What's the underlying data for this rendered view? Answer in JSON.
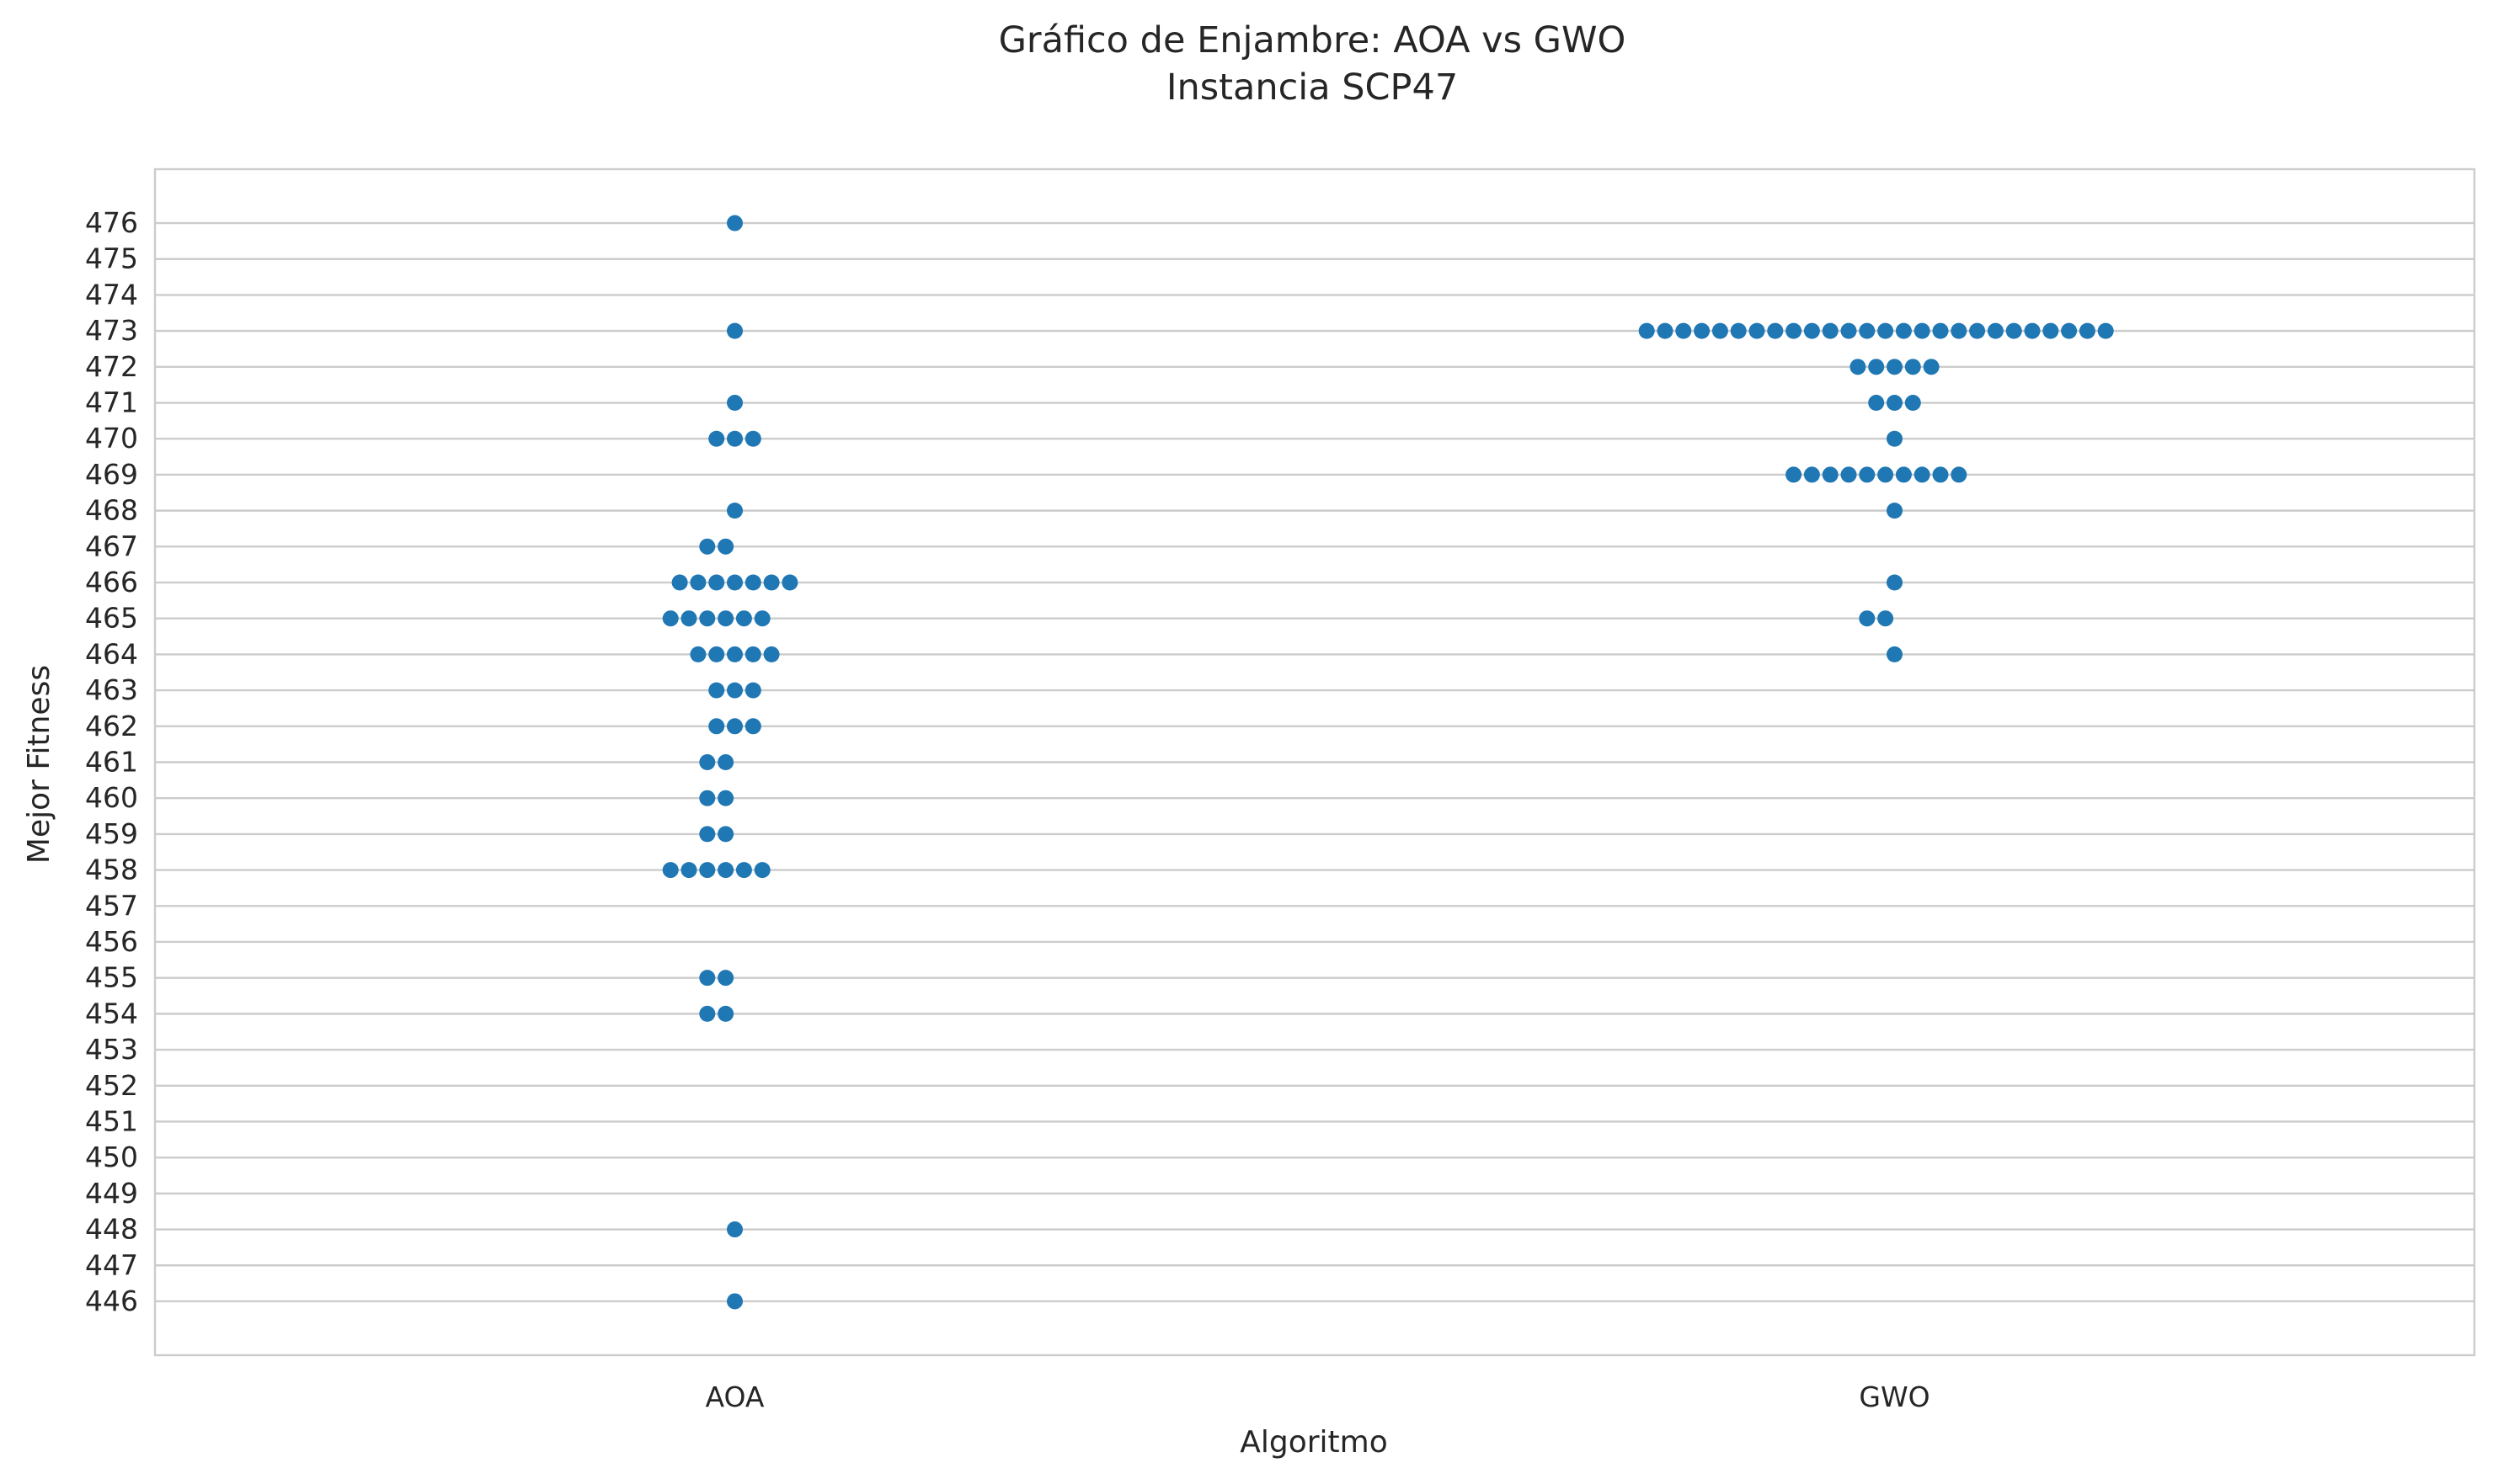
{
  "chart_data": {
    "type": "scatter",
    "subtype": "swarm",
    "title": "Gráfico de Enjambre: AOA vs GWO",
    "subtitle": "Instancia SCP47",
    "xlabel": "Algoritmo",
    "ylabel": "Mejor Fitness",
    "categories": [
      "AOA",
      "GWO"
    ],
    "ylim": [
      444.5,
      477.5
    ],
    "yticks": [
      446,
      447,
      448,
      449,
      450,
      451,
      452,
      453,
      454,
      455,
      456,
      457,
      458,
      459,
      460,
      461,
      462,
      463,
      464,
      465,
      466,
      467,
      468,
      469,
      470,
      471,
      472,
      473,
      474,
      475,
      476
    ],
    "grid": "horizontal",
    "legend": "none",
    "point_color": "#1f77b4",
    "series": [
      {
        "category": "AOA",
        "values": [
          476,
          473,
          471,
          470,
          470,
          470,
          468,
          467,
          467,
          466,
          466,
          466,
          466,
          466,
          466,
          466,
          465,
          465,
          465,
          465,
          465,
          465,
          464,
          464,
          464,
          464,
          464,
          463,
          463,
          463,
          462,
          462,
          462,
          461,
          461,
          460,
          460,
          459,
          459,
          458,
          458,
          458,
          458,
          458,
          458,
          455,
          455,
          454,
          454,
          448,
          446
        ]
      },
      {
        "category": "GWO",
        "values": [
          473,
          473,
          473,
          473,
          473,
          473,
          473,
          473,
          473,
          473,
          473,
          473,
          473,
          473,
          473,
          473,
          473,
          473,
          473,
          473,
          473,
          473,
          473,
          473,
          473,
          473,
          472,
          472,
          472,
          472,
          472,
          471,
          471,
          471,
          470,
          469,
          469,
          469,
          469,
          469,
          469,
          469,
          469,
          469,
          469,
          468,
          466,
          465,
          465,
          464
        ]
      }
    ]
  }
}
